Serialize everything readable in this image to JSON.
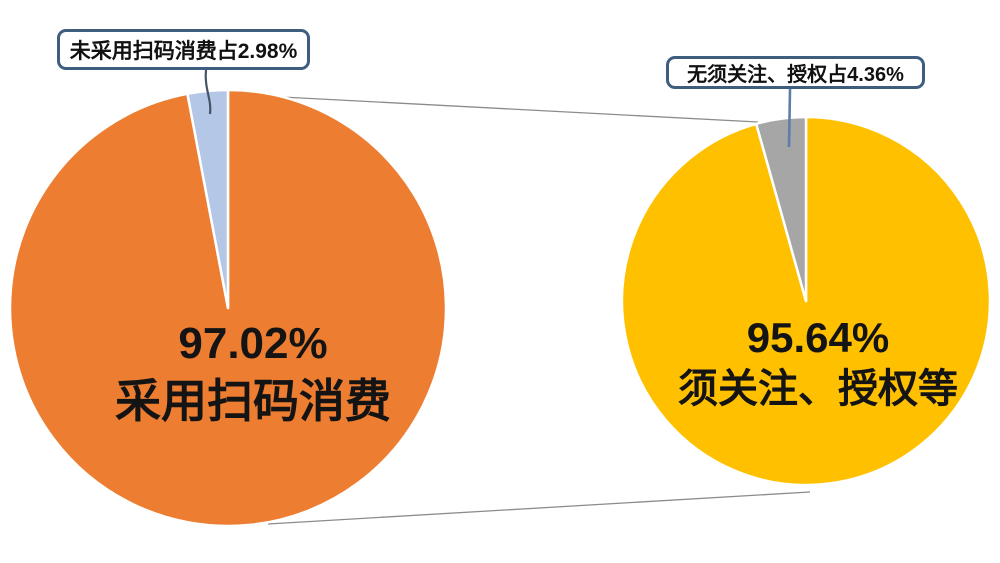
{
  "page": {
    "background_color": "#ffffff",
    "description": "Two pie charts comparing scan-code consumption adoption and follow/authorization requirements"
  },
  "colors": {
    "orange_slice": "#ED7D31",
    "light_blue_slice": "#B4C7E7",
    "yellow_slice": "#FFC000",
    "gray_slice": "#A6A6A6",
    "callout_border": "#3F5D7F",
    "connector_line": "#8C8C8C",
    "leader_line_left": "#44546A",
    "leader_line_right": "#5B7FA6",
    "label_text": "#141414"
  },
  "chart_data": [
    {
      "type": "pie",
      "name": "scan-code-consumption-pie",
      "slices": [
        {
          "id": "adopted-scan-pay",
          "label": "采用扫码消费",
          "value": 97.02,
          "color": "#ED7D31"
        },
        {
          "id": "non-adopted-scan-pay",
          "label": "未采用扫码消费",
          "value": 2.98,
          "color": "#B4C7E7"
        }
      ],
      "center_label": {
        "percent": "97.02%",
        "text": "采用扫码消费"
      },
      "callout": "未采用扫码消费占2.98%",
      "legend": "none",
      "start_angle_deg": 0
    },
    {
      "type": "pie",
      "name": "follow-authorize-pie",
      "slices": [
        {
          "id": "need-follow-auth",
          "label": "须关注、授权等",
          "value": 95.64,
          "color": "#FFC000"
        },
        {
          "id": "no-need-follow-auth",
          "label": "无须关注、授权",
          "value": 4.36,
          "color": "#A6A6A6"
        }
      ],
      "center_label": {
        "percent": "95.64%",
        "text": "须关注、授权等"
      },
      "callout": "无须关注、授权占4.36%",
      "legend": "none",
      "start_angle_deg": 0
    }
  ]
}
